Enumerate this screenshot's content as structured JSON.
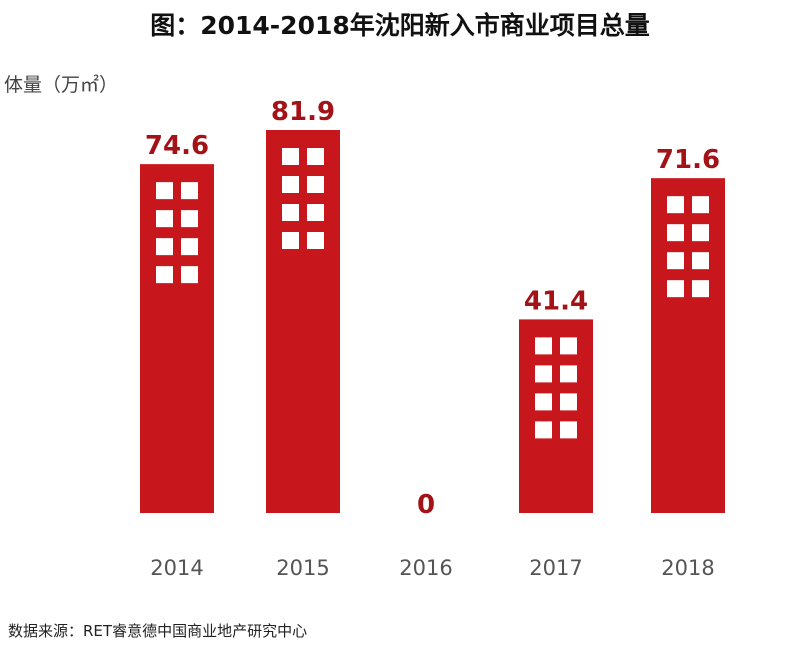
{
  "title": "图：2014-2018年沈阳新入市商业项目总量",
  "ylabel": "体量（万㎡）",
  "source": "数据来源：RET睿意德中国商业地产研究中心",
  "colors": {
    "bar": "#c8161d",
    "label": "#a31217",
    "window": "#ffffff",
    "tick": "#555555"
  },
  "chart_data": {
    "type": "bar",
    "title": "图：2014-2018年沈阳新入市商业项目总量",
    "xlabel": "",
    "ylabel": "体量（万㎡）",
    "categories": [
      "2014",
      "2015",
      "2016",
      "2017",
      "2018"
    ],
    "values": [
      74.6,
      81.9,
      0,
      41.4,
      71.6
    ],
    "value_labels": [
      "74.6",
      "81.9",
      "0",
      "41.4",
      "71.6"
    ],
    "ylim": [
      0,
      81.9
    ],
    "grid": false,
    "legend": "none"
  }
}
